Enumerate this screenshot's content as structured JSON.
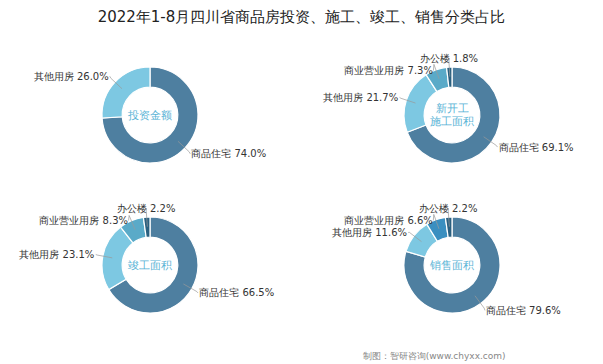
{
  "title": "2022年1-8月四川省商品房投资、施工、竣工、销售分类占比",
  "annotations": [
    "制图：智研咨询(www.chyxx.com)"
  ],
  "chart_data": [
    {
      "type": "pie",
      "title": "投资金额",
      "categories": [
        "商品住宅",
        "其他用房"
      ],
      "values": [
        74.0,
        26.0
      ],
      "value_labels": [
        "商品住宅 74.0%",
        "其他用房 26.0%"
      ],
      "colors": [
        "#4e7fa0",
        "#7dc8e2"
      ],
      "data_labels": true
    },
    {
      "type": "pie",
      "title": "新开工\n施工面积",
      "categories": [
        "商品住宅",
        "其他用房",
        "商业营业用房",
        "办公楼"
      ],
      "values": [
        69.1,
        21.7,
        7.3,
        1.8
      ],
      "value_labels": [
        "商品住宅 69.1%",
        "其他用房 21.7%",
        "商业营业用房 7.3%",
        "办公楼 1.8%"
      ],
      "colors": [
        "#4e7fa0",
        "#7dc8e2",
        "#5aaac8",
        "#2a6080"
      ],
      "data_labels": true
    },
    {
      "type": "pie",
      "title": "竣工面积",
      "categories": [
        "商品住宅",
        "其他用房",
        "商业营业用房",
        "办公楼"
      ],
      "values": [
        66.5,
        23.1,
        8.3,
        2.2
      ],
      "value_labels": [
        "商品住宅 66.5%",
        "其他用房 23.1%",
        "商业营业用房 8.3%",
        "办公楼 2.2%"
      ],
      "colors": [
        "#4e7fa0",
        "#7dc8e2",
        "#5aaac8",
        "#2a6080"
      ],
      "data_labels": true
    },
    {
      "type": "pie",
      "title": "销售面积",
      "categories": [
        "商品住宅",
        "其他用房",
        "商业营业用房",
        "办公楼"
      ],
      "values": [
        79.6,
        11.6,
        6.6,
        2.2
      ],
      "value_labels": [
        "商品住宅 79.6%",
        "其他用房 11.6%",
        "商业营业用房 6.6%",
        "办公楼 2.2%"
      ],
      "colors": [
        "#4e7fa0",
        "#7dc8e2",
        "#3a8fc0",
        "#2a6080"
      ],
      "data_labels": true
    }
  ]
}
